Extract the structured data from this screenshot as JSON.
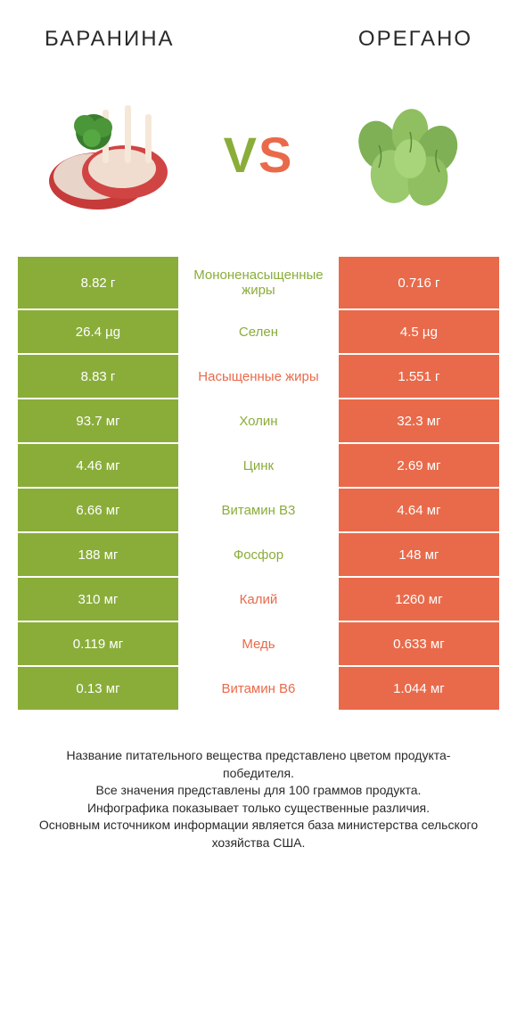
{
  "header": {
    "left_title": "БАРАНИНА",
    "right_title": "OРЕГАНО",
    "vs_v": "V",
    "vs_s": "S"
  },
  "colors": {
    "green": "#8aad3a",
    "orange": "#e96a4a",
    "text": "#2a2a2a",
    "white": "#ffffff"
  },
  "table": {
    "rows": [
      {
        "left": "8.82 г",
        "mid": "Мононенасыщенные жиры",
        "right": "0.716 г",
        "winner": "left"
      },
      {
        "left": "26.4 µg",
        "mid": "Селен",
        "right": "4.5 µg",
        "winner": "left"
      },
      {
        "left": "8.83 г",
        "mid": "Насыщенные жиры",
        "right": "1.551 г",
        "winner": "right"
      },
      {
        "left": "93.7 мг",
        "mid": "Холин",
        "right": "32.3 мг",
        "winner": "left"
      },
      {
        "left": "4.46 мг",
        "mid": "Цинк",
        "right": "2.69 мг",
        "winner": "left"
      },
      {
        "left": "6.66 мг",
        "mid": "Витамин B3",
        "right": "4.64 мг",
        "winner": "left"
      },
      {
        "left": "188 мг",
        "mid": "Фосфор",
        "right": "148 мг",
        "winner": "left"
      },
      {
        "left": "310 мг",
        "mid": "Калий",
        "right": "1260 мг",
        "winner": "right"
      },
      {
        "left": "0.119 мг",
        "mid": "Медь",
        "right": "0.633 мг",
        "winner": "right"
      },
      {
        "left": "0.13 мг",
        "mid": "Витамин B6",
        "right": "1.044 мг",
        "winner": "right"
      }
    ]
  },
  "footer": {
    "line1": "Название питательного вещества представлено цветом продукта-победителя.",
    "line2": "Все значения представлены для 100 граммов продукта.",
    "line3": "Инфографика показывает только существенные различия.",
    "line4": "Основным источником информации является база министерства сельского хозяйства США."
  }
}
